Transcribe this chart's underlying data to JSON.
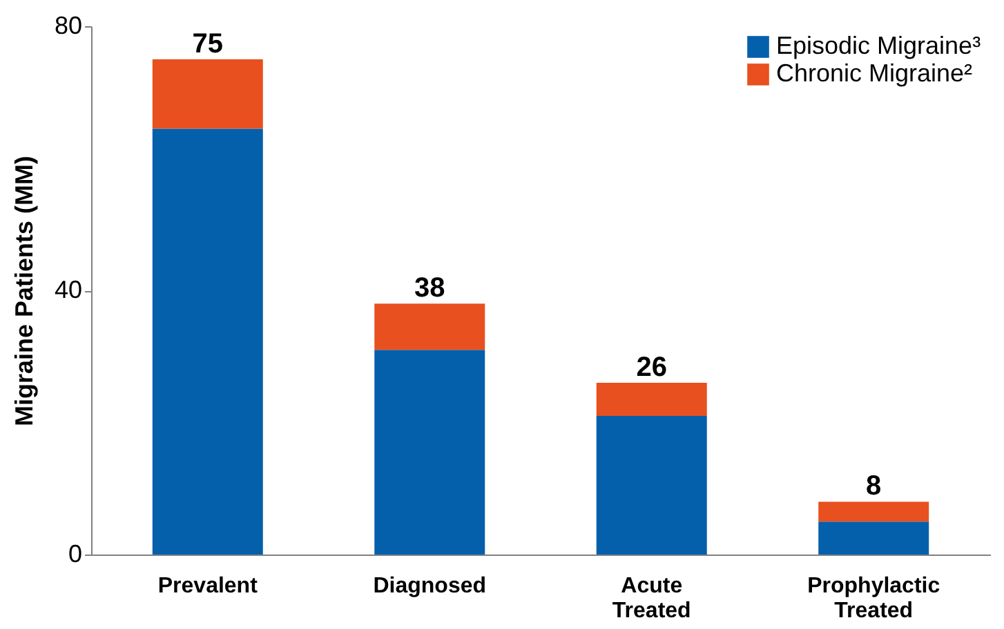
{
  "chart_data": {
    "type": "bar",
    "stacked": true,
    "ylabel": "Migraine Patients (MM)",
    "categories": [
      "Prevalent",
      "Diagnosed",
      "Acute Treated",
      "Prophylactic Treated"
    ],
    "series": [
      {
        "name": "Episodic Migraine³",
        "color": "#0560ac",
        "values": [
          64.5,
          31,
          21,
          5
        ]
      },
      {
        "name": "Chronic Migraine²",
        "color": "#e8501f",
        "values": [
          10.5,
          7,
          5,
          3
        ]
      }
    ],
    "totals": [
      "75",
      "38",
      "26",
      "8"
    ],
    "ylim": [
      0,
      80
    ],
    "yticks": [
      0,
      40,
      80
    ],
    "grid": false,
    "legend": "top right"
  }
}
